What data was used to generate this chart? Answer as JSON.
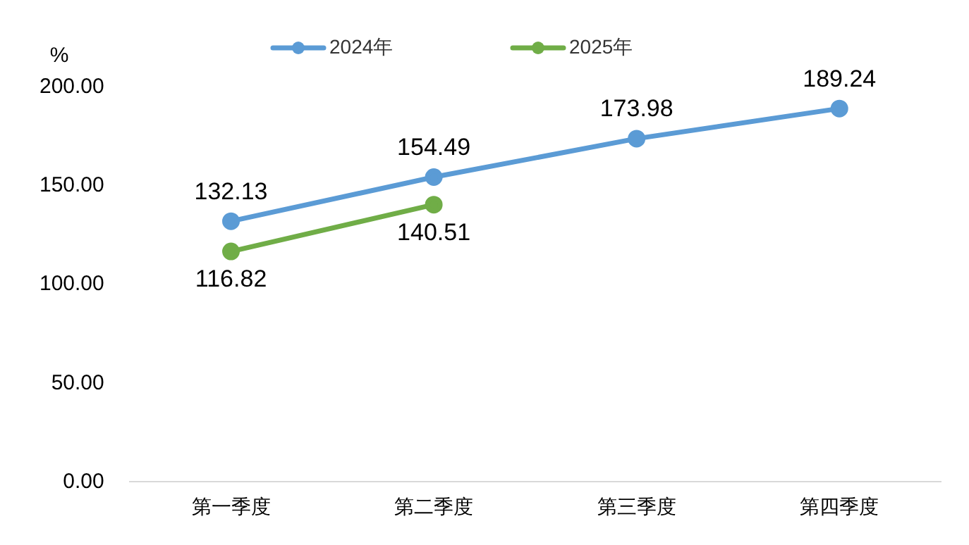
{
  "chart_data": {
    "type": "line",
    "ylabel": "%",
    "categories": [
      "第一季度",
      "第二季度",
      "第三季度",
      "第四季度"
    ],
    "series": [
      {
        "name": "2024年",
        "color": "#5b9bd5",
        "values": [
          132.13,
          154.49,
          173.98,
          189.24
        ]
      },
      {
        "name": "2025年",
        "color": "#70ad47",
        "values": [
          116.82,
          140.51,
          null,
          null
        ]
      }
    ],
    "ylim": [
      0,
      200
    ],
    "yticks": [
      {
        "value": 0,
        "label": "0.00"
      },
      {
        "value": 50,
        "label": "50.00"
      },
      {
        "value": 100,
        "label": "100.00"
      },
      {
        "value": 150,
        "label": "150.00"
      },
      {
        "value": 200,
        "label": "200.00"
      }
    ],
    "grid": false,
    "legend": "top",
    "marker": "circle",
    "line_style": "solid",
    "data_labels": true
  }
}
